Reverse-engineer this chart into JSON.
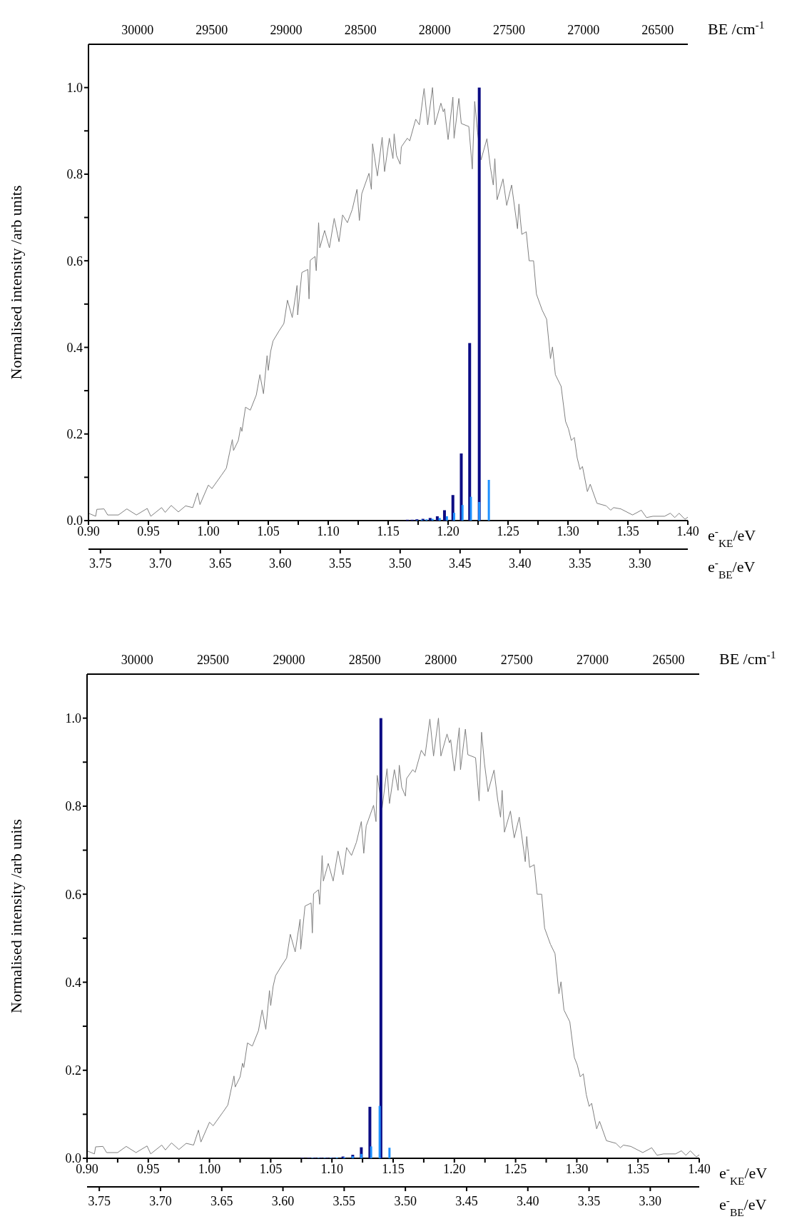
{
  "chart_data": [
    {
      "type": "line",
      "xlabel": "e$^{-}$$_{KE}$/eV",
      "x2label": "e$^{-}$$_{BE}$/eV",
      "ylabel": "Normalised intensity /arb units",
      "annotations": [
        "BE /cm$^{-1}$",
        "30000",
        "29500",
        "29000",
        "28500",
        "28000",
        "27500",
        "27000",
        "26500"
      ],
      "xlim": [
        0.9,
        1.4
      ],
      "xticks": [
        {
          "value": 0.9,
          "label": "0.90"
        },
        {
          "value": 0.925,
          "label": null
        },
        {
          "value": 0.95,
          "label": "0.95"
        },
        {
          "value": 0.975,
          "label": null
        },
        {
          "value": 1.0,
          "label": "1.00"
        },
        {
          "value": 1.025,
          "label": null
        },
        {
          "value": 1.05,
          "label": "1.05"
        },
        {
          "value": 1.075,
          "label": null
        },
        {
          "value": 1.1,
          "label": "1.10"
        },
        {
          "value": 1.125,
          "label": null
        },
        {
          "value": 1.15,
          "label": "1.15"
        },
        {
          "value": 1.175,
          "label": null
        },
        {
          "value": 1.2,
          "label": "1.20"
        },
        {
          "value": 1.225,
          "label": null
        },
        {
          "value": 1.25,
          "label": "1.25"
        },
        {
          "value": 1.275,
          "label": null
        },
        {
          "value": 1.3,
          "label": "1.30"
        },
        {
          "value": 1.325,
          "label": null
        },
        {
          "value": 1.35,
          "label": "1.35"
        },
        {
          "value": 1.375,
          "label": null
        },
        {
          "value": 1.4,
          "label": "1.40"
        }
      ],
      "x2lim": [
        3.76,
        3.26
      ],
      "x2ticks": [
        3.75,
        {
          "value": 3.7,
          "label": "3.70"
        },
        3.65,
        {
          "value": 3.6,
          "label": "3.60"
        },
        3.55,
        {
          "value": 3.5,
          "label": "3.50"
        },
        3.45,
        {
          "value": 3.4,
          "label": "3.40"
        },
        3.35,
        {
          "value": 3.3,
          "label": "3.30"
        }
      ],
      "ylim": [
        0,
        1.1
      ],
      "yticks": [
        {
          "value": 0,
          "label": "0.0"
        },
        {
          "value": 0.1,
          "label": null
        },
        {
          "value": 0.2,
          "label": "0.2"
        },
        {
          "value": 0.3,
          "label": null
        },
        {
          "value": 0.4,
          "label": "0.4"
        },
        {
          "value": 0.5,
          "label": null
        },
        {
          "value": 0.6,
          "label": "0.6"
        },
        {
          "value": 0.7,
          "label": null
        },
        {
          "value": 0.8,
          "label": "0.8"
        },
        {
          "value": 0.9,
          "label": null
        },
        {
          "value": 1,
          "label": "1.0"
        }
      ],
      "series": [
        {
          "color": "#808080",
          "x": [
            0.9,
            0.906,
            0.907,
            0.913,
            0.916,
            0.925,
            0.932,
            0.94,
            0.949,
            0.952,
            0.961,
            0.964,
            0.969,
            0.975,
            0.981,
            0.987,
            0.991,
            0.993,
            1.0,
            1.003,
            1.011,
            1.015,
            1.02,
            1.021,
            1.025,
            1.027,
            1.028,
            1.031,
            1.035,
            1.04,
            1.043,
            1.046,
            1.049,
            1.05,
            1.052,
            1.054,
            1.059,
            1.063,
            1.066,
            1.07,
            1.074,
            1.0745,
            1.078,
            1.083,
            1.084,
            1.085,
            1.089,
            1.09,
            1.092,
            1.093,
            1.097,
            1.101,
            1.105,
            1.109,
            1.112,
            1.116,
            1.12,
            1.124,
            1.126,
            1.128,
            1.134,
            1.136,
            1.137,
            1.141,
            1.145,
            1.147,
            1.151,
            1.154,
            1.155,
            1.157,
            1.16,
            1.161,
            1.166,
            1.168,
            1.173,
            1.176,
            1.18,
            1.183,
            1.187,
            1.189,
            1.194,
            1.196,
            1.197,
            1.2,
            1.204,
            1.205,
            1.209,
            1.211,
            1.2173,
            1.2202,
            1.2222,
            1.2246,
            1.2275,
            1.2324,
            1.2353,
            1.2377,
            1.239,
            1.2409,
            1.2458,
            1.2489,
            1.253,
            1.2579,
            1.2591,
            1.2615,
            1.2652,
            1.2676,
            1.2713,
            1.2737,
            1.2785,
            1.2822,
            1.2854,
            1.2871,
            1.2895,
            1.2943,
            1.298,
            1.3004,
            1.3028,
            1.3053,
            1.3077,
            1.3101,
            1.3121,
            1.3162,
            1.3186,
            1.3242,
            1.332,
            1.3356,
            1.3381,
            1.3441,
            1.3539,
            1.3612,
            1.3655,
            1.3709,
            1.3806,
            1.3854,
            1.3891,
            1.3927,
            1.3976,
            1.4
          ],
          "values": [
            0.017,
            0.01,
            0.026,
            0.027,
            0.013,
            0.013,
            0.027,
            0.013,
            0.028,
            0.01,
            0.03,
            0.019,
            0.035,
            0.02,
            0.034,
            0.03,
            0.064,
            0.037,
            0.082,
            0.074,
            0.105,
            0.121,
            0.187,
            0.162,
            0.185,
            0.216,
            0.206,
            0.262,
            0.255,
            0.29,
            0.337,
            0.293,
            0.381,
            0.347,
            0.391,
            0.415,
            0.438,
            0.455,
            0.509,
            0.469,
            0.543,
            0.475,
            0.573,
            0.58,
            0.512,
            0.601,
            0.61,
            0.577,
            0.688,
            0.63,
            0.67,
            0.63,
            0.698,
            0.644,
            0.706,
            0.688,
            0.718,
            0.765,
            0.693,
            0.755,
            0.802,
            0.765,
            0.87,
            0.796,
            0.885,
            0.806,
            0.883,
            0.836,
            0.893,
            0.843,
            0.823,
            0.863,
            0.883,
            0.877,
            0.927,
            0.914,
            0.998,
            0.914,
            1.0,
            0.914,
            0.964,
            0.944,
            0.951,
            0.88,
            0.978,
            0.883,
            0.975,
            0.917,
            0.91,
            0.812,
            0.968,
            0.897,
            0.833,
            0.882,
            0.816,
            0.775,
            0.836,
            0.741,
            0.789,
            0.728,
            0.775,
            0.674,
            0.731,
            0.661,
            0.667,
            0.6,
            0.6,
            0.523,
            0.486,
            0.465,
            0.374,
            0.401,
            0.337,
            0.31,
            0.229,
            0.212,
            0.185,
            0.192,
            0.145,
            0.118,
            0.125,
            0.067,
            0.084,
            0.04,
            0.034,
            0.024,
            0.03,
            0.027,
            0.013,
            0.024,
            0.007,
            0.01,
            0.01,
            0.017,
            0.007,
            0.017,
            0.003,
            0.008
          ]
        },
        {
          "type": "bar",
          "color": "#0c0c84",
          "x": [
            1.166,
            1.17,
            1.174,
            1.179,
            1.185,
            1.191,
            1.197,
            1.204,
            1.211,
            1.218,
            1.226
          ],
          "values": [
            0.002,
            0.002,
            0.003,
            0.004,
            0.006,
            0.01,
            0.024,
            0.059,
            0.155,
            0.41,
            1.0
          ]
        },
        {
          "type": "bar",
          "color": "#1e90ff",
          "x": [
            1.174,
            1.178,
            1.182,
            1.187,
            1.193,
            1.199,
            1.205,
            1.212,
            1.219,
            1.226,
            1.234
          ],
          "values": [
            0.001,
            0.002,
            0.003,
            0.004,
            0.006,
            0.01,
            0.018,
            0.036,
            0.055,
            0.043,
            0.094
          ]
        }
      ]
    },
    {
      "type": "line",
      "xlabel": "e$^{-}$$_{KE}$/eV",
      "x2label": "e$^{-}$$_{BE}$/eV",
      "ylabel": "Normalised intensity /arb units",
      "annotations": [
        "BE /cm$^{-1}$",
        "30000",
        "29500",
        "29000",
        "28500",
        "28000",
        "27500",
        "27000",
        "26500"
      ],
      "xlim": [
        0.9,
        1.4
      ],
      "xticks": [
        {
          "value": 0.9,
          "label": "0.90"
        },
        {
          "value": 0.925,
          "label": null
        },
        {
          "value": 0.95,
          "label": "0.95"
        },
        {
          "value": 0.975,
          "label": null
        },
        {
          "value": 1.0,
          "label": "1.00"
        },
        {
          "value": 1.025,
          "label": null
        },
        {
          "value": 1.05,
          "label": "1.05"
        },
        {
          "value": 1.075,
          "label": null
        },
        {
          "value": 1.1,
          "label": "1.10"
        },
        {
          "value": 1.125,
          "label": null
        },
        {
          "value": 1.15,
          "label": "1.15"
        },
        {
          "value": 1.175,
          "label": null
        },
        {
          "value": 1.2,
          "label": "1.20"
        },
        {
          "value": 1.225,
          "label": null
        },
        {
          "value": 1.25,
          "label": "1.25"
        },
        {
          "value": 1.275,
          "label": null
        },
        {
          "value": 1.3,
          "label": "1.30"
        },
        {
          "value": 1.325,
          "label": null
        },
        {
          "value": 1.35,
          "label": "1.35"
        },
        {
          "value": 1.375,
          "label": null
        },
        {
          "value": 1.4,
          "label": "1.40"
        }
      ],
      "x2lim": [
        3.76,
        3.26
      ],
      "x2ticks": [
        3.75,
        {
          "value": 3.7,
          "label": "3.70"
        },
        3.65,
        {
          "value": 3.6,
          "label": "3.60"
        },
        3.55,
        {
          "value": 3.5,
          "label": "3.50"
        },
        3.45,
        {
          "value": 3.4,
          "label": "3.40"
        },
        3.35,
        {
          "value": 3.3,
          "label": "3.30"
        }
      ],
      "ylim": [
        0,
        1.1
      ],
      "yticks": [
        {
          "value": 0,
          "label": "0.0"
        },
        {
          "value": 0.1,
          "label": null
        },
        {
          "value": 0.2,
          "label": "0.2"
        },
        {
          "value": 0.3,
          "label": null
        },
        {
          "value": 0.4,
          "label": "0.4"
        },
        {
          "value": 0.5,
          "label": null
        },
        {
          "value": 0.6,
          "label": "0.6"
        },
        {
          "value": 0.7,
          "label": null
        },
        {
          "value": 0.8,
          "label": "0.8"
        },
        {
          "value": 0.9,
          "label": null
        },
        {
          "value": 1,
          "label": "1.0"
        }
      ],
      "series": [
        {
          "color": "#808080",
          "x": [
            0.9,
            0.906,
            0.907,
            0.913,
            0.916,
            0.925,
            0.932,
            0.94,
            0.949,
            0.952,
            0.961,
            0.964,
            0.969,
            0.975,
            0.981,
            0.987,
            0.991,
            0.993,
            1.0,
            1.003,
            1.011,
            1.015,
            1.02,
            1.021,
            1.025,
            1.027,
            1.028,
            1.031,
            1.035,
            1.04,
            1.043,
            1.046,
            1.049,
            1.05,
            1.052,
            1.054,
            1.059,
            1.063,
            1.066,
            1.07,
            1.074,
            1.0745,
            1.078,
            1.083,
            1.084,
            1.085,
            1.089,
            1.09,
            1.092,
            1.093,
            1.097,
            1.101,
            1.105,
            1.109,
            1.112,
            1.116,
            1.12,
            1.124,
            1.126,
            1.128,
            1.134,
            1.136,
            1.137,
            1.141,
            1.145,
            1.147,
            1.151,
            1.154,
            1.155,
            1.157,
            1.16,
            1.161,
            1.166,
            1.168,
            1.173,
            1.176,
            1.18,
            1.183,
            1.187,
            1.189,
            1.194,
            1.196,
            1.197,
            1.2,
            1.204,
            1.205,
            1.209,
            1.211,
            1.2173,
            1.2202,
            1.2222,
            1.2246,
            1.2275,
            1.2324,
            1.2353,
            1.2377,
            1.239,
            1.2409,
            1.2458,
            1.2489,
            1.253,
            1.2579,
            1.2591,
            1.2615,
            1.2652,
            1.2676,
            1.2713,
            1.2737,
            1.2785,
            1.2822,
            1.2854,
            1.2871,
            1.2895,
            1.2943,
            1.298,
            1.3004,
            1.3028,
            1.3053,
            1.3077,
            1.3101,
            1.3121,
            1.3162,
            1.3186,
            1.3242,
            1.332,
            1.3356,
            1.3381,
            1.3441,
            1.3539,
            1.3612,
            1.3655,
            1.3709,
            1.3806,
            1.3854,
            1.3891,
            1.3927,
            1.3976,
            1.4
          ],
          "values": [
            0.017,
            0.01,
            0.026,
            0.027,
            0.013,
            0.013,
            0.027,
            0.013,
            0.028,
            0.01,
            0.03,
            0.019,
            0.035,
            0.02,
            0.034,
            0.03,
            0.064,
            0.037,
            0.082,
            0.074,
            0.105,
            0.121,
            0.187,
            0.162,
            0.185,
            0.216,
            0.206,
            0.262,
            0.255,
            0.29,
            0.337,
            0.293,
            0.381,
            0.347,
            0.391,
            0.415,
            0.438,
            0.455,
            0.509,
            0.469,
            0.543,
            0.475,
            0.573,
            0.58,
            0.512,
            0.601,
            0.61,
            0.577,
            0.688,
            0.63,
            0.67,
            0.63,
            0.698,
            0.644,
            0.706,
            0.688,
            0.718,
            0.765,
            0.693,
            0.755,
            0.802,
            0.765,
            0.87,
            0.796,
            0.885,
            0.806,
            0.883,
            0.836,
            0.893,
            0.843,
            0.823,
            0.863,
            0.883,
            0.877,
            0.927,
            0.914,
            0.998,
            0.914,
            1.0,
            0.914,
            0.964,
            0.944,
            0.951,
            0.88,
            0.978,
            0.883,
            0.975,
            0.917,
            0.91,
            0.812,
            0.968,
            0.897,
            0.833,
            0.882,
            0.816,
            0.775,
            0.836,
            0.741,
            0.789,
            0.728,
            0.775,
            0.674,
            0.731,
            0.661,
            0.667,
            0.6,
            0.6,
            0.523,
            0.486,
            0.465,
            0.374,
            0.401,
            0.337,
            0.31,
            0.229,
            0.212,
            0.185,
            0.192,
            0.145,
            0.118,
            0.125,
            0.067,
            0.084,
            0.04,
            0.034,
            0.024,
            0.03,
            0.027,
            0.013,
            0.024,
            0.007,
            0.01,
            0.01,
            0.017,
            0.007,
            0.017,
            0.003,
            0.008
          ]
        },
        {
          "type": "bar",
          "color": "#0c0c84",
          "x": [
            1.076,
            1.081,
            1.086,
            1.091,
            1.096,
            1.101,
            1.109,
            1.117,
            1.124,
            1.131,
            1.14
          ],
          "values": [
            0.001,
            0.001,
            0.001,
            0.001,
            0.001,
            0.001,
            0.004,
            0.008,
            0.025,
            0.117,
            1.0
          ]
        },
        {
          "type": "bar",
          "color": "#1e90ff",
          "x": [
            1.084,
            1.089,
            1.094,
            1.099,
            1.104,
            1.11,
            1.117,
            1.124,
            1.132,
            1.139,
            1.147
          ],
          "values": [
            0.001,
            0.001,
            0.001,
            0.001,
            0.002,
            0.002,
            0.005,
            0.01,
            0.027,
            0.119,
            0.024
          ]
        }
      ]
    }
  ]
}
